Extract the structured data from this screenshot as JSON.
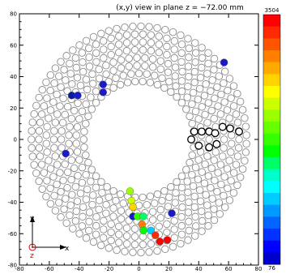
{
  "chart_data": {
    "type": "scatter",
    "title": "(x,y) view in plane z = −72.00 mm",
    "xlabel": "x",
    "ylabel": "y",
    "zlabel": "z",
    "xlim": [
      -80,
      80
    ],
    "ylim": [
      -80,
      80
    ],
    "x_ticks": [
      -80,
      -60,
      -40,
      -20,
      0,
      20,
      40,
      60,
      80
    ],
    "y_ticks": [
      -80,
      -60,
      -40,
      -20,
      0,
      20,
      40,
      60,
      80
    ],
    "ring_radii": [
      37,
      42,
      47,
      52,
      57,
      62,
      67,
      72
    ],
    "ring_counts": [
      46,
      50,
      55,
      61,
      66,
      72,
      78,
      83
    ],
    "colorbar": {
      "min": 76,
      "max": 3504,
      "tick_labels": [
        "3504",
        "76"
      ],
      "colors": [
        "#ff0000",
        "#ff2a00",
        "#ff5500",
        "#ff7f00",
        "#ffaa00",
        "#ffd400",
        "#ffff00",
        "#ccff00",
        "#99ff00",
        "#66ff00",
        "#33ff00",
        "#00ff00",
        "#00ff66",
        "#00ffcc",
        "#00ffff",
        "#00ccff",
        "#0099ff",
        "#0066ff",
        "#0033ff",
        "#0000ff",
        "#0000cc"
      ]
    },
    "hits": [
      {
        "x": -45,
        "y": 28,
        "color": "#0a1a9a"
      },
      {
        "x": -41,
        "y": 28,
        "color": "#1a1acc"
      },
      {
        "x": -24,
        "y": 35,
        "color": "#1a1acc"
      },
      {
        "x": -24,
        "y": 30,
        "color": "#1a1acc"
      },
      {
        "x": 57,
        "y": 49,
        "color": "#1a1acc"
      },
      {
        "x": -49,
        "y": -9,
        "color": "#1a1acc"
      },
      {
        "x": -6,
        "y": -33,
        "color": "#99ff00"
      },
      {
        "x": -5,
        "y": -39,
        "color": "#ccff00"
      },
      {
        "x": -4,
        "y": -43,
        "color": "#ffd400"
      },
      {
        "x": -4,
        "y": -49,
        "color": "#1a1acc"
      },
      {
        "x": -1,
        "y": -49,
        "color": "#33ff00"
      },
      {
        "x": 3,
        "y": -49,
        "color": "#00ff66"
      },
      {
        "x": 2,
        "y": -54,
        "color": "#ff7f00"
      },
      {
        "x": 22,
        "y": -47,
        "color": "#1a1acc"
      },
      {
        "x": 3,
        "y": -58,
        "color": "#00ff00"
      },
      {
        "x": 8,
        "y": -58,
        "color": "#00ccff"
      },
      {
        "x": 11,
        "y": -61,
        "color": "#ff2a00"
      },
      {
        "x": 14,
        "y": -65,
        "color": "#ff0000"
      },
      {
        "x": 19,
        "y": -64,
        "color": "#ff0000"
      }
    ],
    "black_outlined": [
      [
        37,
        5
      ],
      [
        42,
        5
      ],
      [
        47,
        5
      ],
      [
        51,
        4
      ],
      [
        56,
        8
      ],
      [
        61,
        7
      ],
      [
        67,
        5
      ],
      [
        52,
        -3
      ],
      [
        47,
        -5
      ],
      [
        40,
        -4
      ],
      [
        35,
        0
      ]
    ]
  }
}
